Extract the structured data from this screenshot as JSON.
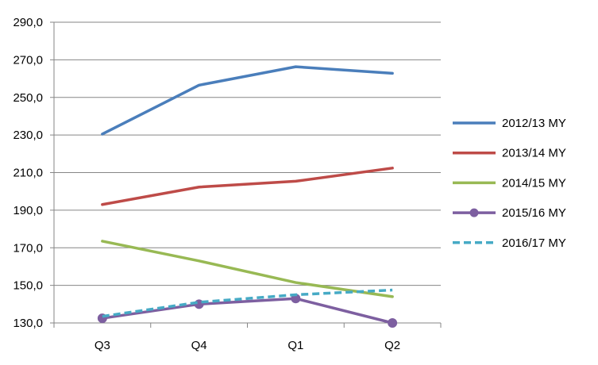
{
  "chart_data": {
    "type": "line",
    "categories": [
      "Q3",
      "Q4",
      "Q1",
      "Q2"
    ],
    "ylim": [
      130,
      290
    ],
    "yticks": [
      "130,0",
      "150,0",
      "170,0",
      "190,0",
      "210,0",
      "230,0",
      "250,0",
      "270,0",
      "290,0"
    ],
    "grid": "horizontal",
    "legend_position": "right",
    "series": [
      {
        "name": "2012/13 MY",
        "color": "#4a7ebb",
        "style": "solid",
        "marker": "none",
        "values": [
          230.5,
          256.5,
          266.3,
          262.8
        ]
      },
      {
        "name": "2013/14 MY",
        "color": "#be4b48",
        "style": "solid",
        "marker": "none",
        "values": [
          193.0,
          202.3,
          205.4,
          212.4
        ]
      },
      {
        "name": "2014/15 MY",
        "color": "#98b954",
        "style": "solid",
        "marker": "none",
        "values": [
          173.5,
          163.0,
          151.5,
          144.0
        ]
      },
      {
        "name": "2015/16 MY",
        "color": "#7d5fa0",
        "style": "solid",
        "marker": "circle",
        "values": [
          132.5,
          140.0,
          143.0,
          130.0
        ]
      },
      {
        "name": "2016/17 MY",
        "color": "#46aac5",
        "style": "dashed",
        "marker": "none",
        "values": [
          133.5,
          141.0,
          145.0,
          147.5
        ]
      }
    ]
  }
}
